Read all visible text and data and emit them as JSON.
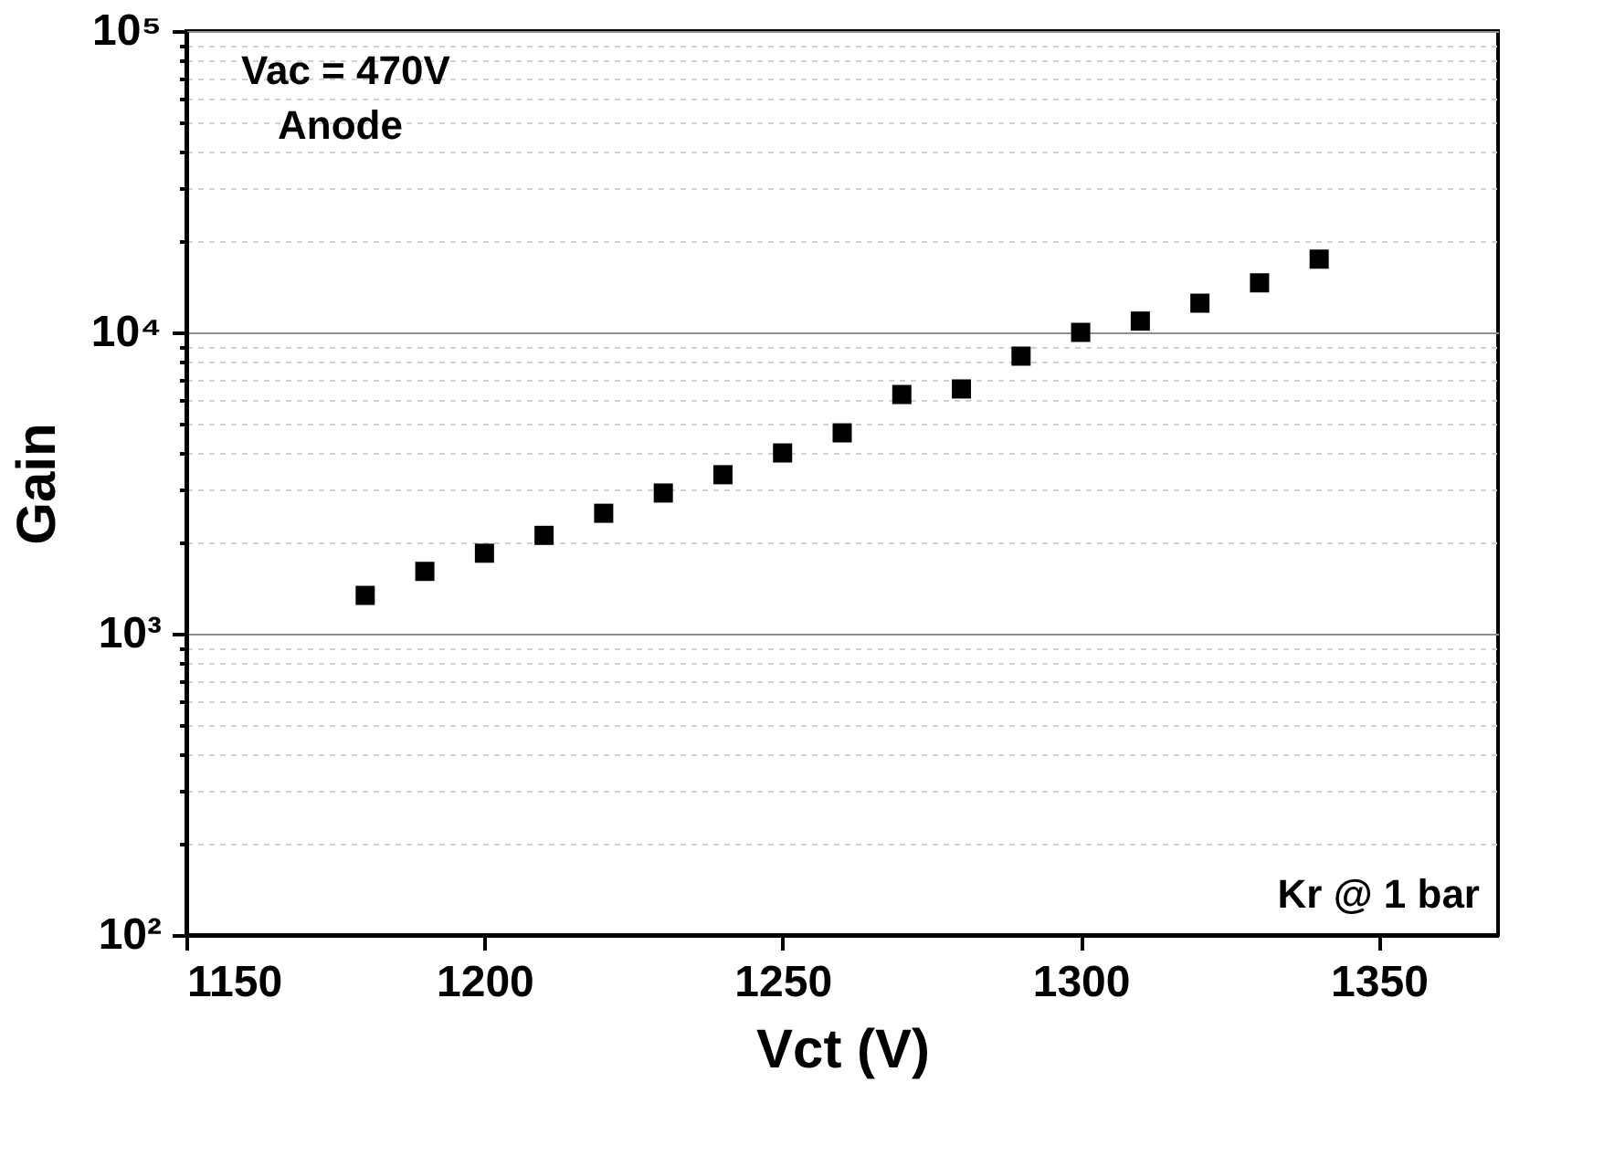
{
  "chart_data": {
    "type": "scatter",
    "xlabel": "Vct (V)",
    "ylabel": "Gain",
    "x": [
      1180,
      1190,
      1200,
      1210,
      1220,
      1230,
      1240,
      1250,
      1260,
      1270,
      1280,
      1290,
      1300,
      1310,
      1320,
      1330,
      1340
    ],
    "series": [
      {
        "color": "#000000",
        "values": [
          1340,
          1610,
          1850,
          2120,
          2510,
          2930,
          3370,
          3980,
          4640,
          6220,
          6490,
          8340,
          10000,
          10900,
          12500,
          14600,
          17500
        ]
      }
    ],
    "marker": "square",
    "log": "y",
    "grid": "y",
    "legend": false,
    "xlim": [
      1150,
      1370
    ],
    "xticks": [
      1150,
      1200,
      1250,
      1300,
      1350
    ],
    "ylim": [
      100,
      100000
    ],
    "yticks": [
      {
        "value": 100,
        "label": "10²"
      },
      {
        "value": 200,
        "label": null
      },
      {
        "value": 300,
        "label": null
      },
      {
        "value": 400,
        "label": null
      },
      {
        "value": 500,
        "label": null
      },
      {
        "value": 600,
        "label": null
      },
      {
        "value": 700,
        "label": null
      },
      {
        "value": 800,
        "label": null
      },
      {
        "value": 900,
        "label": null
      },
      {
        "value": 1000,
        "label": "10³"
      },
      {
        "value": 2000,
        "label": null
      },
      {
        "value": 3000,
        "label": null
      },
      {
        "value": 4000,
        "label": null
      },
      {
        "value": 5000,
        "label": null
      },
      {
        "value": 6000,
        "label": null
      },
      {
        "value": 7000,
        "label": null
      },
      {
        "value": 8000,
        "label": null
      },
      {
        "value": 9000,
        "label": null
      },
      {
        "value": 10000,
        "label": "10⁴"
      },
      {
        "value": 20000,
        "label": null
      },
      {
        "value": 30000,
        "label": null
      },
      {
        "value": 40000,
        "label": null
      },
      {
        "value": 50000,
        "label": null
      },
      {
        "value": 60000,
        "label": null
      },
      {
        "value": 70000,
        "label": null
      },
      {
        "value": 80000,
        "label": null
      },
      {
        "value": 90000,
        "label": null
      },
      {
        "value": 100000,
        "label": "10⁵"
      }
    ],
    "annotations": [
      "Vac = 470V",
      "Anode",
      "Kr @ 1 bar"
    ]
  }
}
